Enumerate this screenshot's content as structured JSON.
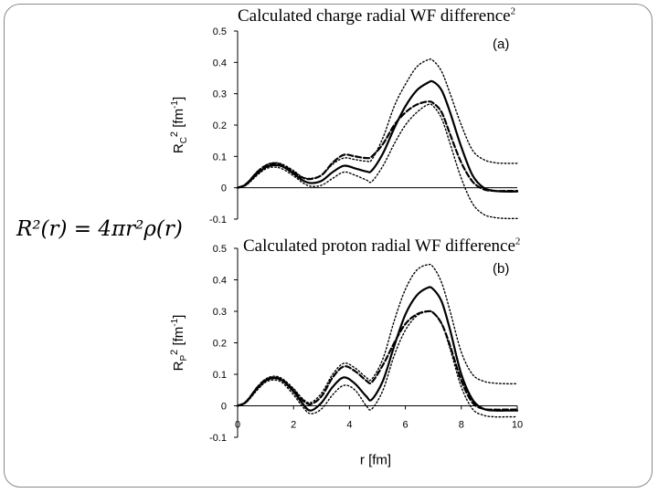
{
  "formula": "R²(r) = 4πr²ρ(r)",
  "chart_data": [
    {
      "type": "line",
      "title": "Calculated charge radial WF difference",
      "title_sup": "2",
      "panel_label": "(a)",
      "ylabel": "RC² [fm⁻¹]",
      "xlabel": "",
      "xlim": [
        0,
        10
      ],
      "ylim": [
        -0.1,
        0.5
      ],
      "yticks": [
        "0.5",
        "0.4",
        "0.3",
        "0.2",
        "0.1",
        "0",
        "-0.1"
      ],
      "xticks": [],
      "series": [
        {
          "style": "solid",
          "x": [
            0,
            0.3,
            0.7,
            1.0,
            1.3,
            1.6,
            2.0,
            2.3,
            2.6,
            3.0,
            3.4,
            3.8,
            4.2,
            4.6,
            4.8,
            5.2,
            5.6,
            6.0,
            6.4,
            6.8,
            7.0,
            7.3,
            7.6,
            8.0,
            8.4,
            8.8,
            9.2,
            9.6,
            10.0
          ],
          "y": [
            0,
            0.01,
            0.045,
            0.065,
            0.072,
            0.068,
            0.045,
            0.025,
            0.015,
            0.022,
            0.05,
            0.07,
            0.062,
            0.052,
            0.055,
            0.11,
            0.19,
            0.26,
            0.31,
            0.335,
            0.338,
            0.31,
            0.24,
            0.13,
            0.04,
            0.0,
            -0.01,
            -0.012,
            -0.012
          ]
        },
        {
          "style": "dashed",
          "x": [
            0,
            0.3,
            0.7,
            1.0,
            1.3,
            1.6,
            2.0,
            2.3,
            2.6,
            3.0,
            3.4,
            3.8,
            4.2,
            4.6,
            4.8,
            5.2,
            5.6,
            6.0,
            6.4,
            6.8,
            7.0,
            7.3,
            7.6,
            8.0,
            8.4,
            8.8,
            9.2,
            9.6,
            10.0
          ],
          "y": [
            0,
            0.012,
            0.05,
            0.07,
            0.078,
            0.072,
            0.05,
            0.033,
            0.028,
            0.04,
            0.08,
            0.105,
            0.1,
            0.095,
            0.1,
            0.14,
            0.2,
            0.24,
            0.265,
            0.275,
            0.27,
            0.24,
            0.17,
            0.08,
            0.02,
            -0.005,
            -0.01,
            -0.01,
            -0.01
          ]
        },
        {
          "style": "dotted",
          "x": [
            0,
            0.3,
            0.7,
            1.0,
            1.3,
            1.6,
            2.0,
            2.3,
            2.6,
            3.0,
            3.4,
            3.8,
            4.2,
            4.6,
            4.8,
            5.2,
            5.6,
            6.0,
            6.4,
            6.8,
            7.0,
            7.3,
            7.6,
            8.0,
            8.4,
            8.8,
            9.2,
            9.6,
            10.0
          ],
          "y": [
            0,
            0.008,
            0.04,
            0.06,
            0.066,
            0.06,
            0.038,
            0.018,
            0.005,
            0.008,
            0.03,
            0.05,
            0.04,
            0.025,
            0.02,
            0.07,
            0.14,
            0.2,
            0.24,
            0.265,
            0.26,
            0.22,
            0.14,
            0.03,
            -0.05,
            -0.085,
            -0.095,
            -0.098,
            -0.098
          ]
        },
        {
          "style": "dotted",
          "x": [
            0,
            0.3,
            0.7,
            1.0,
            1.3,
            1.6,
            2.0,
            2.3,
            2.6,
            3.0,
            3.4,
            3.8,
            4.2,
            4.6,
            4.8,
            5.2,
            5.6,
            6.0,
            6.4,
            6.8,
            7.0,
            7.3,
            7.6,
            8.0,
            8.4,
            8.8,
            9.2,
            9.6,
            10.0
          ],
          "y": [
            0,
            0.012,
            0.052,
            0.072,
            0.08,
            0.075,
            0.055,
            0.035,
            0.03,
            0.04,
            0.075,
            0.095,
            0.09,
            0.085,
            0.09,
            0.16,
            0.26,
            0.33,
            0.385,
            0.408,
            0.405,
            0.37,
            0.3,
            0.2,
            0.12,
            0.09,
            0.08,
            0.078,
            0.078
          ]
        }
      ]
    },
    {
      "type": "line",
      "title": "Calculated proton radial WF difference",
      "title_sup": "2",
      "panel_label": "(b)",
      "ylabel": "RP² [fm⁻¹]",
      "xlabel": "r [fm]",
      "xlim": [
        0,
        10
      ],
      "ylim": [
        -0.1,
        0.5
      ],
      "yticks": [
        "0.5",
        "0.4",
        "0.3",
        "0.2",
        "0.1",
        "0",
        "-0.1"
      ],
      "xticks": [
        "0",
        "2",
        "4",
        "6",
        "8",
        "10"
      ],
      "series": [
        {
          "style": "solid",
          "x": [
            0,
            0.3,
            0.7,
            1.0,
            1.3,
            1.6,
            2.0,
            2.3,
            2.6,
            3.0,
            3.4,
            3.8,
            4.2,
            4.6,
            4.8,
            5.2,
            5.6,
            6.0,
            6.4,
            6.8,
            7.0,
            7.3,
            7.6,
            8.0,
            8.4,
            8.8,
            9.2,
            9.6,
            10.0
          ],
          "y": [
            0,
            0.012,
            0.055,
            0.08,
            0.088,
            0.08,
            0.045,
            0.01,
            -0.015,
            0.01,
            0.06,
            0.09,
            0.07,
            0.03,
            0.02,
            0.08,
            0.19,
            0.29,
            0.35,
            0.375,
            0.37,
            0.33,
            0.24,
            0.1,
            0.02,
            -0.01,
            -0.015,
            -0.015,
            -0.015
          ]
        },
        {
          "style": "dashed",
          "x": [
            0,
            0.3,
            0.7,
            1.0,
            1.3,
            1.6,
            2.0,
            2.3,
            2.6,
            3.0,
            3.4,
            3.8,
            4.2,
            4.6,
            4.8,
            5.2,
            5.6,
            6.0,
            6.4,
            6.8,
            7.0,
            7.3,
            7.6,
            8.0,
            8.4,
            8.8,
            9.2,
            9.6,
            10.0
          ],
          "y": [
            0,
            0.013,
            0.058,
            0.083,
            0.09,
            0.082,
            0.05,
            0.02,
            0.005,
            0.03,
            0.09,
            0.125,
            0.11,
            0.08,
            0.075,
            0.13,
            0.2,
            0.26,
            0.29,
            0.3,
            0.295,
            0.26,
            0.19,
            0.08,
            0.01,
            -0.01,
            -0.012,
            -0.012,
            -0.012
          ]
        },
        {
          "style": "dotted",
          "x": [
            0,
            0.3,
            0.7,
            1.0,
            1.3,
            1.6,
            2.0,
            2.3,
            2.6,
            3.0,
            3.4,
            3.8,
            4.2,
            4.6,
            4.8,
            5.2,
            5.6,
            6.0,
            6.4,
            6.8,
            7.0,
            7.3,
            7.6,
            8.0,
            8.4,
            8.8,
            9.2,
            9.6,
            10.0
          ],
          "y": [
            0,
            0.01,
            0.05,
            0.075,
            0.082,
            0.073,
            0.035,
            0.0,
            -0.025,
            -0.01,
            0.035,
            0.065,
            0.05,
            0.0,
            -0.01,
            0.05,
            0.16,
            0.24,
            0.285,
            0.3,
            0.295,
            0.26,
            0.18,
            0.06,
            -0.01,
            -0.03,
            -0.035,
            -0.035,
            -0.035
          ]
        },
        {
          "style": "dotted",
          "x": [
            0,
            0.3,
            0.7,
            1.0,
            1.3,
            1.6,
            2.0,
            2.3,
            2.6,
            3.0,
            3.4,
            3.8,
            4.2,
            4.6,
            4.8,
            5.2,
            5.6,
            6.0,
            6.4,
            6.8,
            7.0,
            7.3,
            7.6,
            8.0,
            8.4,
            8.8,
            9.2,
            9.6,
            10.0
          ],
          "y": [
            0,
            0.014,
            0.06,
            0.085,
            0.094,
            0.086,
            0.055,
            0.025,
            0.01,
            0.04,
            0.1,
            0.135,
            0.12,
            0.09,
            0.085,
            0.15,
            0.27,
            0.37,
            0.43,
            0.448,
            0.44,
            0.39,
            0.3,
            0.17,
            0.1,
            0.078,
            0.072,
            0.07,
            0.07
          ]
        }
      ]
    }
  ]
}
